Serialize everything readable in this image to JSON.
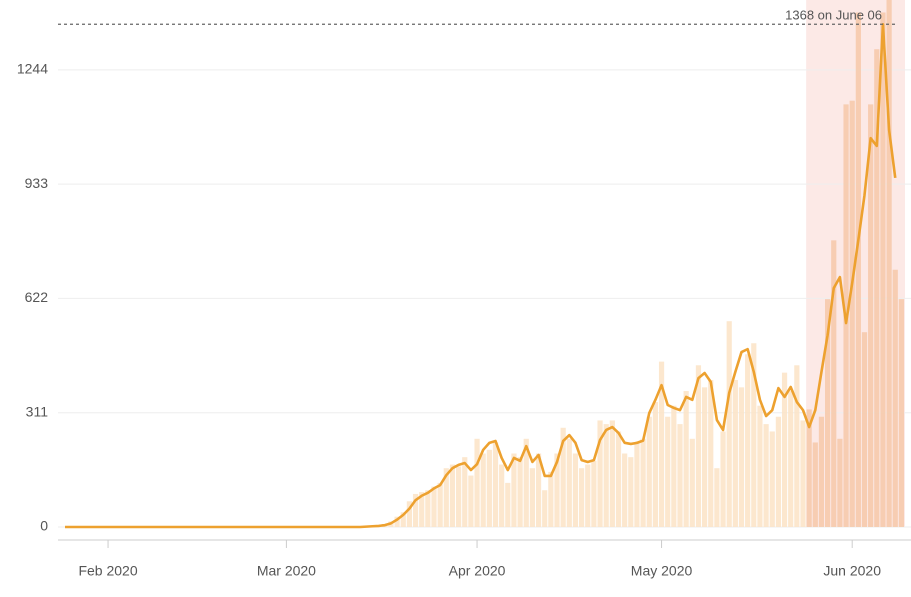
{
  "chart_data": {
    "type": "combo",
    "x": [
      "2020-01-25",
      "2020-01-26",
      "2020-01-27",
      "2020-01-28",
      "2020-01-29",
      "2020-01-30",
      "2020-01-31",
      "2020-02-01",
      "2020-02-02",
      "2020-02-03",
      "2020-02-04",
      "2020-02-05",
      "2020-02-06",
      "2020-02-07",
      "2020-02-08",
      "2020-02-09",
      "2020-02-10",
      "2020-02-11",
      "2020-02-12",
      "2020-02-13",
      "2020-02-14",
      "2020-02-15",
      "2020-02-16",
      "2020-02-17",
      "2020-02-18",
      "2020-02-19",
      "2020-02-20",
      "2020-02-21",
      "2020-02-22",
      "2020-02-23",
      "2020-02-24",
      "2020-02-25",
      "2020-02-26",
      "2020-02-27",
      "2020-02-28",
      "2020-02-29",
      "2020-03-01",
      "2020-03-02",
      "2020-03-03",
      "2020-03-04",
      "2020-03-05",
      "2020-03-06",
      "2020-03-07",
      "2020-03-08",
      "2020-03-09",
      "2020-03-10",
      "2020-03-11",
      "2020-03-12",
      "2020-03-13",
      "2020-03-14",
      "2020-03-15",
      "2020-03-16",
      "2020-03-17",
      "2020-03-18",
      "2020-03-19",
      "2020-03-20",
      "2020-03-21",
      "2020-03-22",
      "2020-03-23",
      "2020-03-24",
      "2020-03-25",
      "2020-03-26",
      "2020-03-27",
      "2020-03-28",
      "2020-03-29",
      "2020-03-30",
      "2020-03-31",
      "2020-04-01",
      "2020-04-02",
      "2020-04-03",
      "2020-04-04",
      "2020-04-05",
      "2020-04-06",
      "2020-04-07",
      "2020-04-08",
      "2020-04-09",
      "2020-04-10",
      "2020-04-11",
      "2020-04-12",
      "2020-04-13",
      "2020-04-14",
      "2020-04-15",
      "2020-04-16",
      "2020-04-17",
      "2020-04-18",
      "2020-04-19",
      "2020-04-20",
      "2020-04-21",
      "2020-04-22",
      "2020-04-23",
      "2020-04-24",
      "2020-04-25",
      "2020-04-26",
      "2020-04-27",
      "2020-04-28",
      "2020-04-29",
      "2020-04-30",
      "2020-05-01",
      "2020-05-02",
      "2020-05-03",
      "2020-05-04",
      "2020-05-05",
      "2020-05-06",
      "2020-05-07",
      "2020-05-08",
      "2020-05-09",
      "2020-05-10",
      "2020-05-11",
      "2020-05-12",
      "2020-05-13",
      "2020-05-14",
      "2020-05-15",
      "2020-05-16",
      "2020-05-17",
      "2020-05-18",
      "2020-05-19",
      "2020-05-20",
      "2020-05-21",
      "2020-05-22",
      "2020-05-23",
      "2020-05-24",
      "2020-05-25",
      "2020-05-26",
      "2020-05-27",
      "2020-05-28",
      "2020-05-29",
      "2020-05-30",
      "2020-05-31",
      "2020-06-01",
      "2020-06-02",
      "2020-06-03",
      "2020-06-04",
      "2020-06-05",
      "2020-06-06",
      "2020-06-07",
      "2020-06-08",
      "2020-06-09"
    ],
    "series": [
      {
        "type": "bar",
        "color": "#fbe3c6",
        "highlight_color": "#f6c8a8",
        "values": [
          0,
          0,
          0,
          0,
          0,
          0,
          0,
          0,
          0,
          0,
          0,
          0,
          0,
          0,
          0,
          0,
          0,
          0,
          0,
          0,
          0,
          0,
          0,
          0,
          0,
          0,
          0,
          0,
          0,
          0,
          0,
          0,
          0,
          0,
          0,
          0,
          0,
          0,
          0,
          0,
          0,
          0,
          0,
          0,
          0,
          0,
          0,
          0,
          0,
          2,
          3,
          5,
          8,
          15,
          28,
          40,
          70,
          90,
          95,
          100,
          110,
          120,
          160,
          170,
          165,
          190,
          140,
          240,
          200,
          210,
          230,
          170,
          120,
          200,
          190,
          240,
          160,
          200,
          100,
          150,
          200,
          270,
          240,
          200,
          160,
          170,
          180,
          290,
          280,
          290,
          260,
          200,
          190,
          230,
          240,
          300,
          340,
          450,
          300,
          330,
          280,
          370,
          240,
          440,
          380,
          400,
          160,
          260,
          560,
          400,
          380,
          470,
          500,
          330,
          280,
          260,
          300,
          420,
          370,
          440,
          290,
          320,
          230,
          300,
          620,
          780,
          240,
          1150,
          1160,
          1400,
          530,
          1150,
          1300,
          1400,
          1434,
          700,
          620
        ]
      },
      {
        "type": "line",
        "color": "#eda12f",
        "values": [
          0,
          0,
          0,
          0,
          0,
          0,
          0,
          0,
          0,
          0,
          0,
          0,
          0,
          0,
          0,
          0,
          0,
          0,
          0,
          0,
          0,
          0,
          0,
          0,
          0,
          0,
          0,
          0,
          0,
          0,
          0,
          0,
          0,
          0,
          0,
          0,
          0,
          0,
          0,
          0,
          0,
          0,
          0,
          0,
          0,
          0,
          0,
          0,
          0,
          1,
          2,
          3,
          5,
          10,
          20,
          33,
          50,
          73,
          85,
          93,
          105,
          114,
          141,
          160,
          169,
          174,
          155,
          171,
          210,
          229,
          234,
          188,
          155,
          188,
          180,
          220,
          177,
          196,
          139,
          139,
          177,
          234,
          250,
          229,
          182,
          177,
          182,
          237,
          264,
          272,
          256,
          229,
          226,
          229,
          235,
          310,
          346,
          386,
          332,
          324,
          318,
          354,
          346,
          405,
          419,
          395,
          291,
          264,
          365,
          422,
          476,
          484,
          422,
          346,
          302,
          318,
          378,
          354,
          381,
          340,
          318,
          272,
          318,
          422,
          522,
          650,
          680,
          555,
          664,
          781,
          903,
          1058,
          1037,
          1368,
          1080,
          950,
          null
        ]
      }
    ],
    "highlight_from": "2020-05-25",
    "highlight_color": "#fbe0dc",
    "annotation": {
      "text": "1368 on June 06",
      "value": 1368
    },
    "xlim": [
      "2020-01-25",
      "2020-06-09"
    ],
    "xticks": [
      {
        "value": "2020-02-01",
        "label": "Feb 2020"
      },
      {
        "value": "2020-03-01",
        "label": "Mar 2020"
      },
      {
        "value": "2020-04-01",
        "label": "Apr 2020"
      },
      {
        "value": "2020-05-01",
        "label": "May 2020"
      },
      {
        "value": "2020-06-01",
        "label": "Jun 2020"
      }
    ],
    "ylim": [
      0,
      1434
    ],
    "yticks": [
      0,
      311,
      622,
      933,
      1244
    ],
    "grid": true
  }
}
